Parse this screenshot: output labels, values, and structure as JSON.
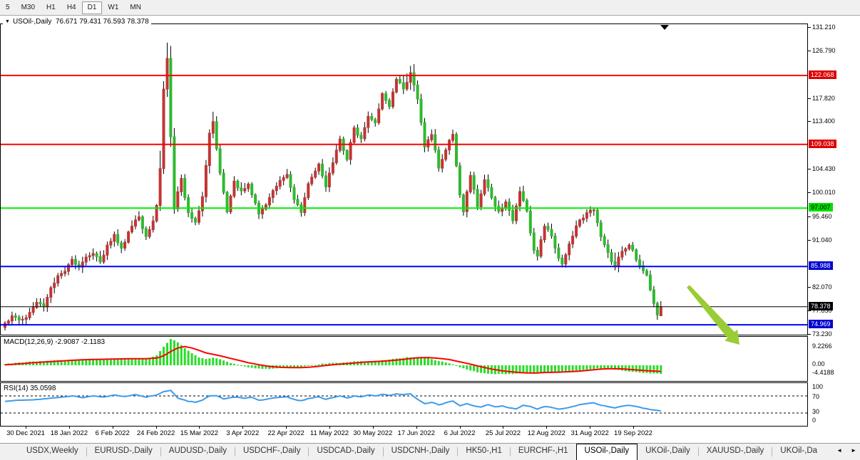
{
  "toolbar": {
    "timeframes": [
      "5",
      "M30",
      "H1",
      "H4",
      "D1",
      "W1",
      "MN"
    ],
    "active_timeframe": "D1"
  },
  "icons": {
    "dropdown": "▼",
    "shift_marker": "▼",
    "tab_scroll_left": "◄",
    "tab_scroll_right": "►"
  },
  "chart_header": {
    "symbol": "USOil-,Daily",
    "ohlc_text": "76.671 79.431 76.593 78.378"
  },
  "tabs": {
    "items": [
      "USDX,Weekly",
      "EURUSD-,Daily",
      "AUDUSD-,Daily",
      "USDCHF-,Daily",
      "USDCAD-,Daily",
      "USDCNH-,Daily",
      "HK50-,H1",
      "EURCHF-,H1",
      "USOil-,Daily",
      "UKOil-,Daily",
      "XAUUSD-,Daily",
      "UKOil-,Da"
    ],
    "active": "USOil-,Daily"
  },
  "chart_data": {
    "type": "candlestick",
    "symbol": "USOil-,Daily",
    "timeframe": "D1",
    "last_ohlc": {
      "open": 76.671,
      "high": 79.431,
      "low": 76.593,
      "close": 78.378
    },
    "x_ticks": [
      "30 Dec 2021",
      "18 Jan 2022",
      "6 Feb 2022",
      "24 Feb 2022",
      "15 Mar 2022",
      "3 Apr 2022",
      "22 Apr 2022",
      "11 May 2022",
      "30 May 2022",
      "17 Jun 2022",
      "6 Jul 2022",
      "25 Jul 2022",
      "12 Aug 2022",
      "31 Aug 2022",
      "19 Sep 2022"
    ],
    "y_ticks": [
      "131.210",
      "126.790",
      "117.820",
      "113.400",
      "104.430",
      "100.010",
      "95.460",
      "91.040",
      "82.070",
      "77.650",
      "73.230"
    ],
    "ylim": [
      73.1,
      131.75
    ],
    "grid": false,
    "hlines": [
      {
        "price": 122.068,
        "label": "122.068",
        "line_color": "#FF0000",
        "label_bg": "#DD0000",
        "label_fg": "#FFFFFF"
      },
      {
        "price": 109.038,
        "label": "109.038",
        "line_color": "#FF0000",
        "label_bg": "#DD0000",
        "label_fg": "#FFFFFF"
      },
      {
        "price": 97.007,
        "label": "97.007",
        "line_color": "#00EE00",
        "label_bg": "#00DD00",
        "label_fg": "#000000"
      },
      {
        "price": 85.988,
        "label": "85.988",
        "line_color": "#0000FF",
        "label_bg": "#0000D0",
        "label_fg": "#FFFFFF"
      },
      {
        "price": 78.378,
        "label": "78.378",
        "line_color": "#000000",
        "label_bg": "#000000",
        "label_fg": "#FFFFFF",
        "role": "current-price"
      },
      {
        "price": 74.969,
        "label": "74.969",
        "line_color": "#0000FF",
        "label_bg": "#0000D0",
        "label_fg": "#FFFFFF"
      }
    ],
    "candles": {
      "count": 187,
      "up_color": "#C23535",
      "down_color": "#2FB92F",
      "close_anchors": [
        [
          0,
          75.3
        ],
        [
          2,
          76.6
        ],
        [
          4,
          75.9
        ],
        [
          6,
          76.3
        ],
        [
          9,
          79.2
        ],
        [
          11,
          78.4
        ],
        [
          13,
          82
        ],
        [
          15,
          84.2
        ],
        [
          17,
          85
        ],
        [
          19,
          87.4
        ],
        [
          21,
          85.9
        ],
        [
          23,
          87.8
        ],
        [
          25,
          88.4
        ],
        [
          27,
          86.9
        ],
        [
          29,
          90
        ],
        [
          31,
          92
        ],
        [
          33,
          89.4
        ],
        [
          35,
          92.5
        ],
        [
          37,
          94.8
        ],
        [
          38,
          95.4
        ],
        [
          40,
          91.7
        ],
        [
          42,
          94.6
        ],
        [
          43,
          97.5
        ],
        [
          44,
          104.5
        ],
        [
          45,
          119.5
        ],
        [
          46,
          125.3
        ],
        [
          47,
          110.5
        ],
        [
          48,
          96.8
        ],
        [
          50,
          102.6
        ],
        [
          52,
          96.2
        ],
        [
          54,
          94.4
        ],
        [
          56,
          99.2
        ],
        [
          58,
          111.2
        ],
        [
          59,
          113.4
        ],
        [
          61,
          103.6
        ],
        [
          63,
          96.3
        ],
        [
          65,
          102.1
        ],
        [
          67,
          100.3
        ],
        [
          69,
          101.5
        ],
        [
          71,
          98
        ],
        [
          72,
          95.9
        ],
        [
          74,
          97.6
        ],
        [
          77,
          101.2
        ],
        [
          80,
          103.4
        ],
        [
          82,
          98.6
        ],
        [
          84,
          96.1
        ],
        [
          86,
          101.6
        ],
        [
          89,
          105.4
        ],
        [
          91,
          101
        ],
        [
          93,
          105.6
        ],
        [
          95,
          110.1
        ],
        [
          97,
          106.2
        ],
        [
          99,
          112.1
        ],
        [
          101,
          110.2
        ],
        [
          103,
          114.3
        ],
        [
          105,
          113.1
        ],
        [
          107,
          118.6
        ],
        [
          109,
          116.2
        ],
        [
          111,
          121.4
        ],
        [
          113,
          119.6
        ],
        [
          115,
          122.6
        ],
        [
          117,
          117.6
        ],
        [
          119,
          108.6
        ],
        [
          121,
          110.9
        ],
        [
          123,
          104.6
        ],
        [
          125,
          108
        ],
        [
          127,
          111
        ],
        [
          129,
          99.5
        ],
        [
          130,
          96.3
        ],
        [
          132,
          103.2
        ],
        [
          134,
          97.3
        ],
        [
          136,
          102.3
        ],
        [
          138,
          99
        ],
        [
          140,
          96.4
        ],
        [
          142,
          98.2
        ],
        [
          144,
          94.6
        ],
        [
          146,
          100.2
        ],
        [
          148,
          96.5
        ],
        [
          150,
          89
        ],
        [
          151,
          88
        ],
        [
          153,
          93.6
        ],
        [
          155,
          91.8
        ],
        [
          157,
          87.6
        ],
        [
          158,
          86.4
        ],
        [
          160,
          90.2
        ],
        [
          162,
          93.6
        ],
        [
          165,
          96.2
        ],
        [
          167,
          96.6
        ],
        [
          169,
          91.6
        ],
        [
          171,
          88.6
        ],
        [
          173,
          85.9
        ],
        [
          175,
          88.9
        ],
        [
          177,
          90.1
        ],
        [
          178,
          89.1
        ],
        [
          180,
          86.1
        ],
        [
          182,
          84.3
        ],
        [
          183,
          81.6
        ],
        [
          184,
          79
        ],
        [
          185,
          76.9
        ],
        [
          186,
          78.378
        ]
      ],
      "wick_boost": {
        "44": 2.5,
        "45": 3.5,
        "46": 3.5,
        "47": 3,
        "48": 2.5,
        "58": 1,
        "59": 1,
        "113": 1.2,
        "114": 1.2,
        "115": 1.2,
        "116": 1.2,
        "173": 1.2
      }
    },
    "indicators": {
      "macd": {
        "label": "MACD(12,26,9) -2.9087 -2.1183",
        "name": "MACD",
        "params": "12,26,9",
        "main_value": -2.9087,
        "signal_value": -2.1183,
        "axis_labels": [
          "9.2266",
          "0.00",
          "-4.4188"
        ],
        "hist_color": "#2ADD2A",
        "signal_color": "#FF0000",
        "anchors": [
          [
            0,
            0.5,
            0.15
          ],
          [
            4,
            0.9,
            0.5
          ],
          [
            8,
            1.3,
            0.9
          ],
          [
            12,
            1.5,
            1.2
          ],
          [
            16,
            1.8,
            1.5
          ],
          [
            20,
            2,
            1.8
          ],
          [
            24,
            2.1,
            2
          ],
          [
            28,
            2.2,
            2.1
          ],
          [
            32,
            2.2,
            2.2
          ],
          [
            36,
            2.5,
            2.3
          ],
          [
            40,
            2.2,
            2.3
          ],
          [
            43,
            3.5,
            2.5
          ],
          [
            45,
            6.5,
            3.3
          ],
          [
            47,
            9.2,
            4.8
          ],
          [
            49,
            8,
            6
          ],
          [
            51,
            6,
            6.5
          ],
          [
            53,
            4.2,
            6
          ],
          [
            55,
            2.8,
            5.2
          ],
          [
            57,
            2.2,
            4.3
          ],
          [
            59,
            2.6,
            3.8
          ],
          [
            61,
            2.2,
            3.3
          ],
          [
            63,
            1.2,
            2.7
          ],
          [
            66,
            0.2,
            1.8
          ],
          [
            69,
            -0.7,
            0.9
          ],
          [
            72,
            -1.2,
            0.2
          ],
          [
            75,
            -1.3,
            -0.4
          ],
          [
            78,
            -0.9,
            -0.7
          ],
          [
            81,
            -0.6,
            -0.8
          ],
          [
            84,
            -0.7,
            -0.8
          ],
          [
            87,
            0,
            -0.6
          ],
          [
            90,
            0.5,
            -0.2
          ],
          [
            93,
            0.8,
            0.2
          ],
          [
            96,
            1,
            0.5
          ],
          [
            99,
            1.3,
            0.8
          ],
          [
            102,
            1.4,
            1.1
          ],
          [
            105,
            1.5,
            1.3
          ],
          [
            108,
            1.9,
            1.5
          ],
          [
            111,
            2.3,
            1.8
          ],
          [
            114,
            2.8,
            2.2
          ],
          [
            117,
            2.9,
            2.6
          ],
          [
            120,
            2.4,
            2.7
          ],
          [
            123,
            1.5,
            2.4
          ],
          [
            126,
            0.7,
            2
          ],
          [
            129,
            -0.7,
            1.2
          ],
          [
            132,
            -1.8,
            0.4
          ],
          [
            135,
            -2.6,
            -0.5
          ],
          [
            138,
            -3,
            -1.3
          ],
          [
            141,
            -3.1,
            -1.9
          ],
          [
            144,
            -3,
            -2.3
          ],
          [
            147,
            -2.6,
            -2.6
          ],
          [
            150,
            -2.5,
            -2.7
          ],
          [
            153,
            -2.3,
            -2.5
          ],
          [
            156,
            -2.4,
            -2.4
          ],
          [
            159,
            -2.3,
            -2.3
          ],
          [
            162,
            -2,
            -2.1
          ],
          [
            165,
            -1.5,
            -1.8
          ],
          [
            168,
            -1.1,
            -1.4
          ],
          [
            171,
            -1.2,
            -1.2
          ],
          [
            174,
            -1.6,
            -1.2
          ],
          [
            177,
            -2.1,
            -1.4
          ],
          [
            180,
            -2.5,
            -1.7
          ],
          [
            183,
            -2.8,
            -1.95
          ],
          [
            186,
            -2.9087,
            -2.1183
          ]
        ]
      },
      "rsi": {
        "label": "RSI(14) 35.0598",
        "name": "RSI",
        "params": "14",
        "value": 35.0598,
        "axis_labels": [
          "100",
          "70",
          "30",
          "0"
        ],
        "levels": [
          70,
          30
        ],
        "line_color": "#3D9BE9",
        "anchors": [
          [
            0,
            57
          ],
          [
            4,
            60
          ],
          [
            8,
            61
          ],
          [
            12,
            64
          ],
          [
            16,
            67
          ],
          [
            19,
            70
          ],
          [
            22,
            66
          ],
          [
            25,
            70
          ],
          [
            28,
            67
          ],
          [
            31,
            72
          ],
          [
            34,
            68
          ],
          [
            37,
            73
          ],
          [
            40,
            67
          ],
          [
            43,
            72
          ],
          [
            45,
            80
          ],
          [
            47,
            83
          ],
          [
            49,
            65
          ],
          [
            52,
            57
          ],
          [
            54,
            55
          ],
          [
            56,
            60
          ],
          [
            58,
            70
          ],
          [
            60,
            71
          ],
          [
            62,
            63
          ],
          [
            65,
            67
          ],
          [
            68,
            65
          ],
          [
            70,
            67
          ],
          [
            72,
            60
          ],
          [
            74,
            62
          ],
          [
            77,
            66
          ],
          [
            80,
            68
          ],
          [
            82,
            62
          ],
          [
            84,
            59
          ],
          [
            86,
            64
          ],
          [
            89,
            68
          ],
          [
            91,
            62
          ],
          [
            93,
            66
          ],
          [
            95,
            70
          ],
          [
            97,
            65
          ],
          [
            99,
            70
          ],
          [
            101,
            68
          ],
          [
            103,
            72
          ],
          [
            105,
            70
          ],
          [
            107,
            74
          ],
          [
            109,
            71
          ],
          [
            111,
            75
          ],
          [
            113,
            73
          ],
          [
            115,
            75
          ],
          [
            117,
            62
          ],
          [
            119,
            52
          ],
          [
            121,
            55
          ],
          [
            123,
            49
          ],
          [
            125,
            54
          ],
          [
            127,
            58
          ],
          [
            129,
            47
          ],
          [
            131,
            52
          ],
          [
            133,
            46
          ],
          [
            135,
            44
          ],
          [
            137,
            50
          ],
          [
            139,
            44
          ],
          [
            141,
            46
          ],
          [
            143,
            42
          ],
          [
            145,
            40
          ],
          [
            147,
            48
          ],
          [
            149,
            45
          ],
          [
            151,
            39
          ],
          [
            153,
            45
          ],
          [
            155,
            43
          ],
          [
            157,
            39
          ],
          [
            159,
            41
          ],
          [
            161,
            45
          ],
          [
            163,
            49
          ],
          [
            165,
            52
          ],
          [
            167,
            54
          ],
          [
            169,
            48
          ],
          [
            171,
            45
          ],
          [
            173,
            42
          ],
          [
            175,
            46
          ],
          [
            177,
            48
          ],
          [
            179,
            45
          ],
          [
            181,
            42
          ],
          [
            183,
            38
          ],
          [
            186,
            35.06
          ]
        ]
      }
    },
    "annotations": [
      {
        "type": "arrow",
        "color": "#9ACC33",
        "direction": "down-right",
        "note": "points from ~82.5 toward ~71.5 at right edge of price action"
      }
    ]
  }
}
